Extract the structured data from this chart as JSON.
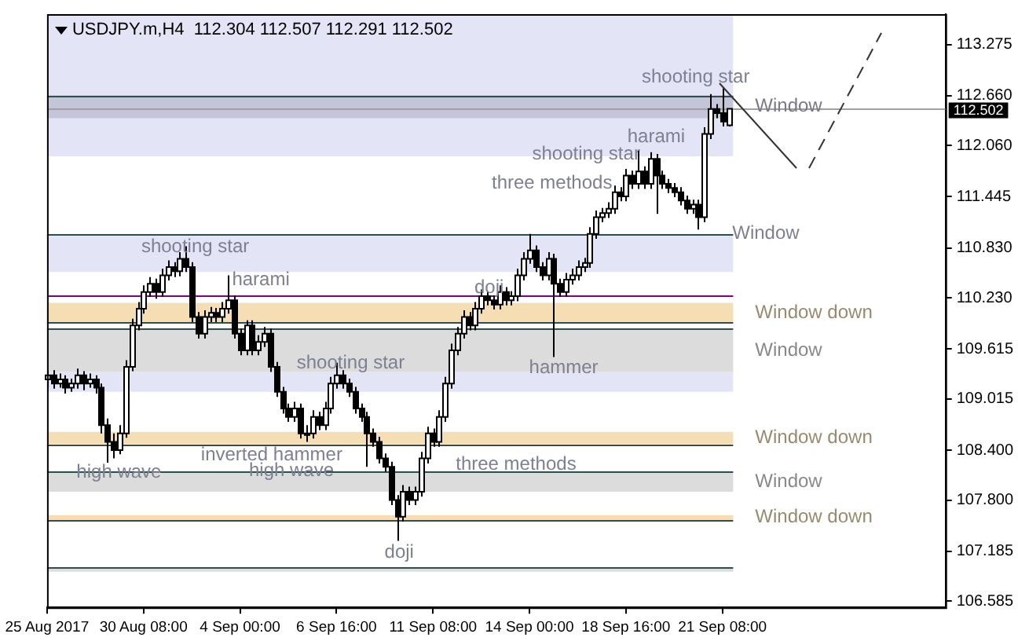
{
  "chart_data": {
    "type": "candlestick",
    "title": "USDJPY.m,H4  112.304 112.507 112.291 112.502",
    "color": "#000000",
    "colors": [
      "#ffffff",
      "#000000",
      "#ffffff",
      "#000000",
      "#ffffff",
      "#ffffff",
      "#000000",
      "#ffffff",
      "#000000",
      "#000000",
      "#000000",
      "#000000",
      "#ffffff",
      "#ffffff",
      "#ffffff",
      "#ffffff",
      "#ffffff",
      "#ffffff",
      "#000000",
      "#ffffff",
      "#ffffff",
      "#000000",
      "#ffffff",
      "#000000",
      "#000000",
      "#000000",
      "#ffffff",
      "#ffffff",
      "#000000",
      "#ffffff",
      "#ffffff",
      "#000000",
      "#000000",
      "#ffffff",
      "#000000",
      "#ffffff",
      "#ffffff",
      "#000000",
      "#000000",
      "#000000",
      "#000000",
      "#ffffff",
      "#000000",
      "#ffffff",
      "#ffffff",
      "#000000",
      "#ffffff",
      "#ffffff",
      "#ffffff",
      "#000000",
      "#000000",
      "#000000",
      "#000000",
      "#000000",
      "#000000",
      "#000000",
      "#000000",
      "#000000",
      "#000000",
      "#ffffff",
      "#000000",
      "#ffffff",
      "#ffffff",
      "#ffffff",
      "#000000",
      "#ffffff",
      "#ffffff",
      "#ffffff",
      "#ffffff",
      "#ffffff",
      "#000000",
      "#ffffff",
      "#ffffff",
      "#000000",
      "#000000",
      "#ffffff",
      "#000000",
      "#ffffff",
      "#ffffff",
      "#ffffff",
      "#ffffff",
      "#000000",
      "#000000",
      "#ffffff",
      "#000000",
      "#000000",
      "#ffffff",
      "#ffffff",
      "#ffffff",
      "#ffffff",
      "#ffffff",
      "#ffffff",
      "#ffffff",
      "#ffffff",
      "#ffffff",
      "#000000",
      "#ffffff",
      "#000000",
      "#ffffff",
      "#000000",
      "#ffffff",
      "#000000",
      "#000000",
      "#000000",
      "#000000",
      "#000000",
      "#000000",
      "#ffffff",
      "#000000",
      "#ffffff",
      "#ffffff",
      "#000000",
      "#000000",
      "#ffffff",
      null,
      null,
      null,
      null,
      null,
      null,
      null,
      null,
      null,
      null,
      null,
      null,
      null,
      null,
      null,
      null,
      null,
      null,
      null,
      null,
      null,
      null,
      null,
      null,
      null,
      null,
      null,
      null,
      null,
      null,
      null,
      null,
      null,
      null,
      null,
      null
    ],
    "categories": [
      "25 Aug 2017",
      null,
      null,
      null,
      null,
      null,
      null,
      null,
      null,
      null,
      null,
      null,
      null,
      null,
      null,
      null,
      "30 Aug 08:00",
      null,
      null,
      null,
      null,
      null,
      null,
      null,
      null,
      null,
      null,
      null,
      null,
      null,
      null,
      null,
      "4 Sep 00:00",
      null,
      null,
      null,
      null,
      null,
      null,
      null,
      null,
      null,
      null,
      null,
      null,
      null,
      null,
      null,
      "6 Sep 16:00",
      null,
      null,
      null,
      null,
      null,
      null,
      null,
      null,
      null,
      null,
      null,
      null,
      null,
      null,
      null,
      "11 Sep 08:00",
      null,
      null,
      null,
      null,
      null,
      null,
      null,
      null,
      null,
      null,
      null,
      null,
      null,
      null,
      null,
      "14 Sep 00:00",
      null,
      null,
      null,
      null,
      null,
      null,
      null,
      null,
      null,
      null,
      null,
      null,
      null,
      null,
      null,
      "18 Sep 16:00",
      null,
      null,
      null,
      null,
      null,
      null,
      null,
      null,
      null,
      null,
      null,
      null,
      null,
      null,
      null,
      "21 Sep 08:00",
      null,
      null,
      null,
      null,
      null,
      null,
      null,
      null,
      null,
      null,
      null,
      null,
      null,
      null,
      null,
      null,
      null,
      null,
      null,
      null,
      null,
      null,
      null,
      null,
      null,
      null,
      null,
      null,
      null,
      null,
      null,
      null,
      null,
      null,
      null,
      null,
      null
    ],
    "ohlc": [
      [
        109.25,
        109.35,
        109.15,
        109.3
      ],
      [
        109.3,
        109.36,
        109.14,
        109.2
      ],
      [
        109.2,
        109.32,
        109.15,
        109.25
      ],
      [
        109.25,
        109.3,
        109.08,
        109.15
      ],
      [
        109.15,
        109.26,
        109.1,
        109.2
      ],
      [
        109.2,
        109.38,
        109.14,
        109.3
      ],
      [
        109.3,
        109.35,
        109.12,
        109.2
      ],
      [
        109.2,
        109.32,
        109.15,
        109.25
      ],
      [
        109.25,
        109.3,
        109.08,
        109.15
      ],
      [
        109.15,
        109.2,
        108.6,
        108.7
      ],
      [
        108.7,
        108.78,
        108.25,
        108.5
      ],
      [
        108.5,
        108.6,
        108.3,
        108.4
      ],
      [
        108.4,
        108.7,
        108.35,
        108.6
      ],
      [
        108.6,
        109.48,
        108.55,
        109.4
      ],
      [
        109.4,
        109.98,
        109.35,
        109.9
      ],
      [
        109.9,
        110.18,
        109.84,
        110.1
      ],
      [
        110.1,
        110.38,
        110.04,
        110.3
      ],
      [
        110.3,
        110.48,
        110.24,
        110.4
      ],
      [
        110.4,
        110.46,
        110.22,
        110.3
      ],
      [
        110.3,
        110.58,
        110.24,
        110.5
      ],
      [
        110.5,
        110.68,
        110.44,
        110.6
      ],
      [
        110.6,
        110.66,
        110.48,
        110.55
      ],
      [
        110.55,
        110.78,
        110.49,
        110.7
      ],
      [
        110.7,
        110.85,
        110.54,
        110.6
      ],
      [
        110.6,
        110.66,
        109.94,
        110.0
      ],
      [
        110.0,
        110.06,
        109.74,
        109.8
      ],
      [
        109.8,
        110.08,
        109.74,
        110.0
      ],
      [
        110.0,
        110.12,
        109.94,
        110.05
      ],
      [
        110.05,
        110.11,
        109.94,
        110.0
      ],
      [
        110.0,
        110.18,
        109.94,
        110.1
      ],
      [
        110.1,
        110.5,
        110.04,
        110.2
      ],
      [
        110.2,
        110.26,
        109.74,
        109.8
      ],
      [
        109.8,
        109.86,
        109.54,
        109.6
      ],
      [
        109.6,
        109.96,
        109.54,
        109.9
      ],
      [
        109.9,
        109.96,
        109.54,
        109.6
      ],
      [
        109.6,
        109.78,
        109.54,
        109.7
      ],
      [
        109.7,
        109.88,
        109.64,
        109.8
      ],
      [
        109.8,
        109.86,
        109.34,
        109.4
      ],
      [
        109.4,
        109.46,
        109.04,
        109.1
      ],
      [
        109.1,
        109.16,
        108.84,
        108.9
      ],
      [
        108.9,
        108.96,
        108.74,
        108.8
      ],
      [
        108.8,
        108.98,
        108.74,
        108.9
      ],
      [
        108.9,
        108.96,
        108.54,
        108.6
      ],
      [
        108.6,
        108.7,
        108.5,
        108.6
      ],
      [
        108.6,
        108.88,
        108.54,
        108.8
      ],
      [
        108.8,
        108.86,
        108.64,
        108.7
      ],
      [
        108.7,
        108.98,
        108.64,
        108.9
      ],
      [
        108.9,
        109.28,
        108.84,
        109.2
      ],
      [
        109.2,
        109.45,
        109.14,
        109.3
      ],
      [
        109.3,
        109.36,
        109.14,
        109.2
      ],
      [
        109.2,
        109.26,
        109.04,
        109.1
      ],
      [
        109.1,
        109.16,
        108.84,
        108.9
      ],
      [
        108.9,
        108.96,
        108.74,
        108.8
      ],
      [
        108.8,
        108.86,
        108.2,
        108.6
      ],
      [
        108.6,
        108.66,
        108.44,
        108.5
      ],
      [
        108.5,
        108.56,
        108.24,
        108.3
      ],
      [
        108.3,
        108.36,
        108.14,
        108.2
      ],
      [
        108.2,
        108.26,
        107.74,
        107.8
      ],
      [
        107.8,
        107.86,
        107.31,
        107.6
      ],
      [
        107.6,
        107.98,
        107.54,
        107.9
      ],
      [
        107.9,
        107.96,
        107.74,
        107.8
      ],
      [
        107.8,
        107.96,
        107.74,
        107.9
      ],
      [
        107.9,
        108.38,
        107.84,
        108.3
      ],
      [
        108.3,
        108.68,
        108.24,
        108.6
      ],
      [
        108.6,
        108.66,
        108.44,
        108.5
      ],
      [
        108.5,
        108.88,
        108.44,
        108.8
      ],
      [
        108.8,
        109.28,
        108.74,
        109.2
      ],
      [
        109.2,
        109.68,
        109.14,
        109.6
      ],
      [
        109.6,
        109.88,
        109.54,
        109.8
      ],
      [
        109.8,
        110.08,
        109.74,
        110.0
      ],
      [
        110.0,
        110.06,
        109.84,
        109.9
      ],
      [
        109.9,
        110.18,
        109.84,
        110.1
      ],
      [
        110.1,
        110.33,
        110.04,
        110.25
      ],
      [
        110.25,
        110.31,
        110.14,
        110.2
      ],
      [
        110.2,
        110.26,
        110.09,
        110.15
      ],
      [
        110.15,
        110.38,
        110.09,
        110.3
      ],
      [
        110.3,
        110.36,
        110.14,
        110.2
      ],
      [
        110.2,
        110.31,
        110.14,
        110.25
      ],
      [
        110.25,
        110.58,
        110.19,
        110.5
      ],
      [
        110.5,
        110.78,
        110.44,
        110.7
      ],
      [
        110.7,
        111.0,
        110.64,
        110.8
      ],
      [
        110.8,
        110.86,
        110.54,
        110.6
      ],
      [
        110.6,
        110.66,
        110.44,
        110.5
      ],
      [
        110.5,
        110.78,
        110.44,
        110.7
      ],
      [
        110.7,
        110.76,
        109.52,
        110.4
      ],
      [
        110.4,
        110.46,
        110.24,
        110.3
      ],
      [
        110.3,
        110.53,
        110.24,
        110.45
      ],
      [
        110.45,
        110.58,
        110.39,
        110.5
      ],
      [
        110.5,
        110.68,
        110.44,
        110.6
      ],
      [
        110.6,
        110.71,
        110.54,
        110.65
      ],
      [
        110.65,
        111.08,
        110.59,
        111.0
      ],
      [
        111.0,
        111.28,
        110.94,
        111.2
      ],
      [
        111.2,
        111.31,
        111.14,
        111.25
      ],
      [
        111.25,
        111.38,
        111.19,
        111.3
      ],
      [
        111.3,
        111.58,
        111.24,
        111.5
      ],
      [
        111.5,
        111.56,
        111.39,
        111.45
      ],
      [
        111.45,
        111.78,
        111.39,
        111.7
      ],
      [
        111.7,
        111.76,
        111.54,
        111.6
      ],
      [
        111.6,
        112.0,
        111.54,
        111.75
      ],
      [
        111.75,
        111.81,
        111.54,
        111.6
      ],
      [
        111.6,
        111.98,
        111.54,
        111.9
      ],
      [
        111.9,
        111.96,
        111.24,
        111.7
      ],
      [
        111.7,
        111.76,
        111.54,
        111.6
      ],
      [
        111.6,
        111.66,
        111.49,
        111.55
      ],
      [
        111.55,
        111.61,
        111.44,
        111.5
      ],
      [
        111.5,
        111.56,
        111.34,
        111.4
      ],
      [
        111.4,
        111.46,
        111.24,
        111.3
      ],
      [
        111.3,
        111.41,
        111.24,
        111.35
      ],
      [
        111.35,
        111.41,
        111.05,
        111.2
      ],
      [
        111.2,
        112.28,
        111.14,
        112.2
      ],
      [
        112.2,
        112.68,
        112.14,
        112.5
      ],
      [
        112.5,
        112.56,
        112.39,
        112.45
      ],
      [
        112.45,
        112.75,
        112.29,
        112.35
      ],
      [
        112.304,
        112.507,
        112.291,
        112.502
      ],
      null,
      null,
      null,
      null,
      null,
      null,
      null,
      null,
      null,
      null,
      null,
      null,
      null,
      null,
      null,
      null,
      null,
      null,
      null,
      null,
      null,
      null,
      null,
      null,
      null,
      null,
      null,
      null,
      null,
      null,
      null,
      null,
      null,
      null,
      null,
      null
    ],
    "ylim": [
      106.51,
      113.64
    ],
    "yticks": [
      106.585,
      107.185,
      {
        "value": 107.8,
        "label": "107.800"
      },
      {
        "value": 108.4,
        "label": "108.400"
      },
      109.015,
      109.615,
      {
        "value": 110.23,
        "label": "110.230"
      },
      {
        "value": 110.83,
        "label": "110.830"
      },
      111.445,
      {
        "value": 112.06,
        "label": "112.060"
      },
      {
        "value": 112.66,
        "label": "112.660"
      },
      113.275
    ],
    "grid": false,
    "bands": [
      {
        "axis": "y",
        "from": 111.93,
        "to": 113.64,
        "color": "#e3e4f6"
      },
      {
        "axis": "y",
        "from": 112.39,
        "to": 112.665,
        "color": "#c4c5d9",
        "label": "Window"
      },
      {
        "axis": "y",
        "from": 110.54,
        "to": 111.0,
        "color": "#e3e4f6"
      },
      {
        "axis": "y",
        "from": 109.93,
        "to": 110.17,
        "color": "#f5deb3",
        "label": "Window down"
      },
      {
        "axis": "y",
        "from": 109.1,
        "to": 109.34,
        "color": "#e3e4f6"
      },
      {
        "axis": "y",
        "from": 109.34,
        "to": 109.86,
        "color": "#dcdcdc",
        "label": "Window"
      },
      {
        "axis": "y",
        "from": 108.47,
        "to": 108.62,
        "color": "#f5deb3",
        "label": "Window down"
      },
      {
        "axis": "y",
        "from": 107.9,
        "to": 108.14,
        "color": "#dcdcdc",
        "label": "Window"
      },
      {
        "axis": "y",
        "from": 107.56,
        "to": 107.62,
        "color": "#f5deb3",
        "label": "Window down"
      },
      {
        "axis": "y",
        "from": 106.94,
        "to": 106.99,
        "color": "#dcdcdc"
      }
    ],
    "ref_lines": [
      {
        "axis": "y",
        "value": 112.665,
        "color": "#2f4f4f"
      },
      {
        "axis": "y",
        "value": 111.0,
        "color": "#2f4f4f"
      },
      {
        "axis": "y",
        "value": 110.26,
        "color": "#800080"
      },
      {
        "axis": "y",
        "value": 109.93,
        "color": "#2f4f4f"
      },
      {
        "axis": "y",
        "value": 109.86,
        "color": "#2f4f4f"
      },
      {
        "axis": "y",
        "value": 108.47,
        "color": "#2f4f4f"
      },
      {
        "axis": "y",
        "value": 108.14,
        "color": "#2f4f4f"
      },
      {
        "axis": "y",
        "value": 107.56,
        "color": "#2f4f4f"
      },
      {
        "axis": "y",
        "value": 106.99,
        "color": "#2f4f4f"
      },
      {
        "axis": "y",
        "value": 112.502,
        "color": "#a0a0a0",
        "label": "112.502"
      }
    ],
    "annotations": [
      "shooting star",
      "harami",
      "doji",
      "shooting star",
      "hammer",
      "high wave",
      "inverted hammer",
      "high wave",
      "three methods",
      "doji",
      "three methods",
      "shooting star",
      "harami",
      "shooting star",
      "Window"
    ]
  }
}
